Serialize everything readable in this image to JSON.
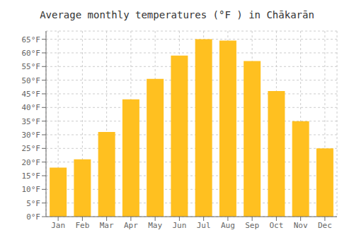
{
  "chart_data": {
    "type": "bar",
    "title": "Average monthly temperatures (°F ) in Chākarān",
    "categories": [
      "Jan",
      "Feb",
      "Mar",
      "Apr",
      "May",
      "Jun",
      "Jul",
      "Aug",
      "Sep",
      "Oct",
      "Nov",
      "Dec"
    ],
    "values": [
      18,
      21,
      31,
      43,
      50.5,
      59,
      65,
      64.5,
      57,
      46,
      35,
      25
    ],
    "color": "#FFC020",
    "ylim": [
      0,
      68
    ],
    "yticks": [
      {
        "value": 0,
        "label": "0°F"
      },
      {
        "value": 5,
        "label": "5°F"
      },
      {
        "value": 10,
        "label": "10°F"
      },
      {
        "value": 15,
        "label": "15°F"
      },
      {
        "value": 20,
        "label": "20°F"
      },
      {
        "value": 25,
        "label": "25°F"
      },
      {
        "value": 30,
        "label": "30°F"
      },
      {
        "value": 35,
        "label": "35°F"
      },
      {
        "value": 40,
        "label": "40°F"
      },
      {
        "value": 45,
        "label": "45°F"
      },
      {
        "value": 50,
        "label": "50°F"
      },
      {
        "value": 55,
        "label": "55°F"
      },
      {
        "value": 60,
        "label": "60°F"
      },
      {
        "value": 65,
        "label": "65°F"
      }
    ],
    "grid": true
  }
}
